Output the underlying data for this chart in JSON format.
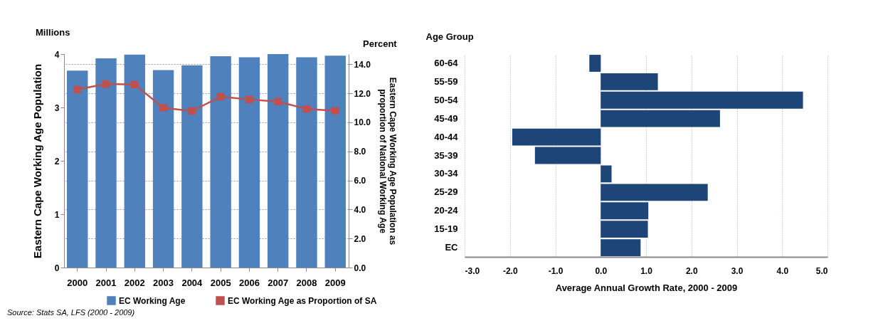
{
  "chart_data": [
    {
      "type": "bar",
      "categories": [
        "2000",
        "2001",
        "2002",
        "2003",
        "2004",
        "2005",
        "2006",
        "2007",
        "2008",
        "2009"
      ],
      "series": [
        {
          "name": "EC Working Age",
          "color": "#4f81bd",
          "values": [
            3.69,
            3.92,
            3.99,
            3.7,
            3.79,
            3.96,
            3.94,
            4.0,
            3.94,
            3.97
          ]
        },
        {
          "name": "EC Working Age as Proportion of SA",
          "type": "line",
          "axis": "y2",
          "color": "#c0504d",
          "marker": "square",
          "values": [
            12.26,
            12.64,
            12.6,
            11.0,
            10.78,
            11.77,
            11.57,
            11.43,
            10.92,
            10.8
          ]
        }
      ],
      "ylabel": "Eastern Cape Working Age Population",
      "y2label": "Eastern Cape  Working Age Population as proportion of  National Working Age",
      "ylim": [
        0,
        4
      ],
      "yticks": [
        0,
        1,
        2,
        3,
        4
      ],
      "y2lim": [
        0,
        14.7
      ],
      "y2ticks": [
        {
          "value": 0,
          "label": "0.0"
        },
        {
          "value": 2,
          "label": "2.0"
        },
        {
          "value": 4,
          "label": "4.0"
        },
        {
          "value": 6,
          "label": "6.0"
        },
        {
          "value": 8,
          "label": "8.0"
        },
        {
          "value": 10,
          "label": "10.0"
        },
        {
          "value": 12,
          "label": "12.0"
        },
        {
          "value": 14,
          "label": "14.0"
        }
      ],
      "grid": "y",
      "legend": "bottom",
      "annotations": [
        "Millions",
        "Percent",
        "Source: Stats SA, LFS (2000 - 2009)"
      ]
    },
    {
      "type": "bar",
      "orientation": "horizontal",
      "categories": [
        "60-64",
        "55-59",
        "50-54",
        "45-49",
        "40-44",
        "35-39",
        "30-34",
        "25-29",
        "20-24",
        "15-19",
        "EC"
      ],
      "values": [
        -0.25,
        1.26,
        4.46,
        2.63,
        -1.95,
        -1.45,
        0.24,
        2.36,
        1.05,
        1.04,
        0.88
      ],
      "color": "#1d4577",
      "xlabel": "Average Annual Growth Rate, 2000 - 2009",
      "ylabel": "Age Group",
      "xlim": [
        -3,
        5
      ],
      "xticks": [
        {
          "value": -3,
          "label": "-3.0"
        },
        {
          "value": -2,
          "label": "-2.0"
        },
        {
          "value": -1,
          "label": "-1.0"
        },
        {
          "value": 0,
          "label": "0.0"
        },
        {
          "value": 1,
          "label": "1.0"
        },
        {
          "value": 2,
          "label": "2.0"
        },
        {
          "value": 3,
          "label": "3.0"
        },
        {
          "value": 4,
          "label": "4.0"
        },
        {
          "value": 5,
          "label": "5.0"
        }
      ],
      "grid": "x"
    }
  ]
}
